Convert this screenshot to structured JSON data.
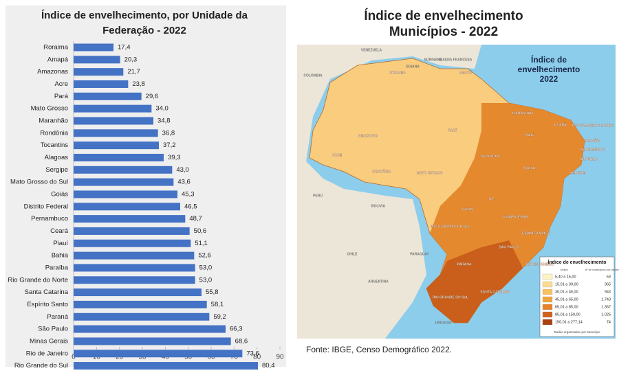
{
  "chart_data": {
    "type": "bar",
    "orientation": "horizontal",
    "title": "Índice de envelhecimento, por Unidade da Federação - 2022",
    "categories": [
      "Roraima",
      "Amapá",
      "Amazonas",
      "Acre",
      "Pará",
      "Mato Grosso",
      "Maranhão",
      "Rondônia",
      "Tocantins",
      "Alagoas",
      "Sergipe",
      "Mato Grosso do Sul",
      "Goiás",
      "Distrito Federal",
      "Pernambuco",
      "Ceará",
      "Piauí",
      "Bahia",
      "Paraíba",
      "Rio Grande do Norte",
      "Santa Catarina",
      "Espírito Santo",
      "Paraná",
      "São Paulo",
      "Minas Gerais",
      "Rio de Janeiro",
      "Rio Grande do Sul"
    ],
    "values": [
      17.4,
      20.3,
      21.7,
      23.8,
      29.6,
      34.0,
      34.8,
      36.8,
      37.2,
      39.3,
      43.0,
      43.6,
      45.3,
      46.5,
      48.7,
      50.6,
      51.1,
      52.6,
      53.0,
      53.0,
      55.8,
      58.1,
      59.2,
      66.3,
      68.6,
      73.6,
      80.4
    ],
    "value_labels": [
      "17,4",
      "20,3",
      "21,7",
      "23,8",
      "29,6",
      "34,0",
      "34,8",
      "36,8",
      "37,2",
      "39,3",
      "43,0",
      "43,6",
      "45,3",
      "46,5",
      "48,7",
      "50,6",
      "51,1",
      "52,6",
      "53,0",
      "53,0",
      "55,8",
      "58,1",
      "59,2",
      "66,3",
      "68,6",
      "73,6",
      "80,4"
    ],
    "color": "#4472c4",
    "xlim": [
      0,
      90
    ],
    "xticks": [
      0,
      10,
      20,
      30,
      40,
      50,
      60,
      70,
      80,
      90
    ],
    "grid": false
  },
  "map": {
    "title": "Índice de envelhecimento Municípios - 2022",
    "inner_title": "Índice de envelhecimento 2022",
    "labels": [
      "VENEZUELA",
      "GUIANA",
      "SURINAME",
      "GUIANA FRANCESA",
      "COLOMBIA",
      "PERU",
      "BOLIVIA",
      "PARAGUAY",
      "ARGENTINA",
      "URUGUAY",
      "CHILE",
      "RORAIMA",
      "AMAPÁ",
      "AMAZONAS",
      "PARÁ",
      "ACRE",
      "RONDÔNIA",
      "MATO GROSSO",
      "TOCANTINS",
      "MARANHÃO",
      "PIAUÍ",
      "CEARÁ",
      "RIO GRANDE DO NORTE",
      "PARAÍBA",
      "PERNAMBUCO",
      "ALAGOAS",
      "SERGIPE",
      "BAHIA",
      "GOIÁS",
      "D.F.",
      "MATO GROSSO DO SUL",
      "MINAS GERAIS",
      "ESPÍRITO SANTO",
      "SÃO PAULO",
      "RIO DE JANEIRO",
      "PARANÁ",
      "SANTA CATARINA",
      "RIO GRANDE DO SUL"
    ],
    "legend": {
      "title": "Índice de envelhecimento",
      "col1": "Índice",
      "col2": "nº de municípios por classe",
      "rows": [
        [
          "5,40 a 15,00",
          "53"
        ],
        [
          "15,01 a 30,00",
          "365"
        ],
        [
          "30,01 a 45,00",
          "943"
        ],
        [
          "45,01 a 65,00",
          "1.743"
        ],
        [
          "65,01 a 85,00",
          "1.367"
        ],
        [
          "85,01 a 150,00",
          "1.025"
        ],
        [
          "150,01 a 277,14",
          "74"
        ]
      ],
      "colors": [
        "#fdf3c4",
        "#fbdc91",
        "#f8c260",
        "#f3a33d",
        "#e8822a",
        "#d0621c",
        "#a8420f"
      ],
      "note": "Dados organizados por Município"
    }
  },
  "source": "Fonte: IBGE, Censo Demográfico 2022."
}
